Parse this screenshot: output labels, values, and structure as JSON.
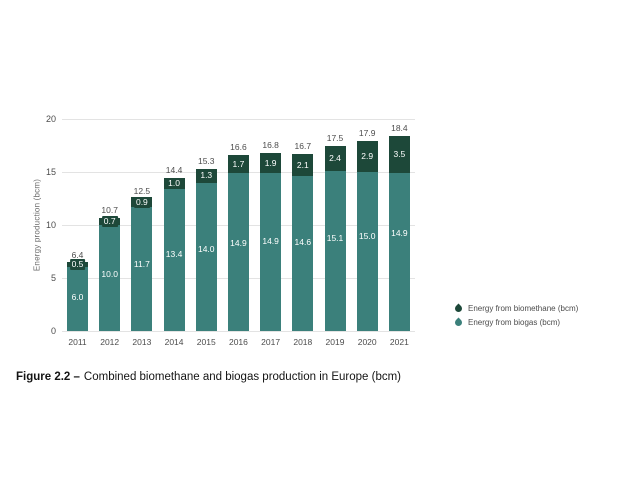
{
  "chart_data": {
    "type": "bar",
    "stacked": true,
    "title": "",
    "xlabel": "",
    "ylabel": "Energy production (bcm)",
    "ylim": [
      0,
      20
    ],
    "yticks": [
      0,
      5,
      10,
      15,
      20
    ],
    "grid": true,
    "legend_position": "right",
    "categories": [
      "2011",
      "2012",
      "2013",
      "2014",
      "2015",
      "2016",
      "2017",
      "2018",
      "2019",
      "2020",
      "2021"
    ],
    "series": [
      {
        "name": "Energy from biomethane (bcm)",
        "color": "#1d4839",
        "values": [
          0.5,
          0.7,
          0.9,
          1.0,
          1.3,
          1.7,
          1.9,
          2.1,
          2.4,
          2.9,
          3.5
        ]
      },
      {
        "name": "Energy from biogas (bcm)",
        "color": "#3b807b",
        "values": [
          6.0,
          10.0,
          11.7,
          13.4,
          14.0,
          14.9,
          14.9,
          14.6,
          15.1,
          15.0,
          14.9
        ]
      }
    ],
    "totals": [
      6.4,
      10.7,
      12.5,
      14.4,
      15.3,
      16.6,
      16.8,
      16.7,
      17.5,
      17.9,
      18.4
    ]
  },
  "legend": {
    "biomethane_label": "Energy from biomethane (bcm)",
    "biogas_label": "Energy from biogas (bcm)"
  },
  "caption": {
    "label": "Figure 2.2 –",
    "text": "Combined biomethane and biogas production in Europe (bcm)"
  },
  "colors": {
    "biomethane": "#1d4839",
    "biogas": "#3b807b",
    "gridline": "#e3e3e3",
    "label_text": "#4c4c4c",
    "segment_label_text": "#ffffff",
    "background": "#ffffff"
  }
}
